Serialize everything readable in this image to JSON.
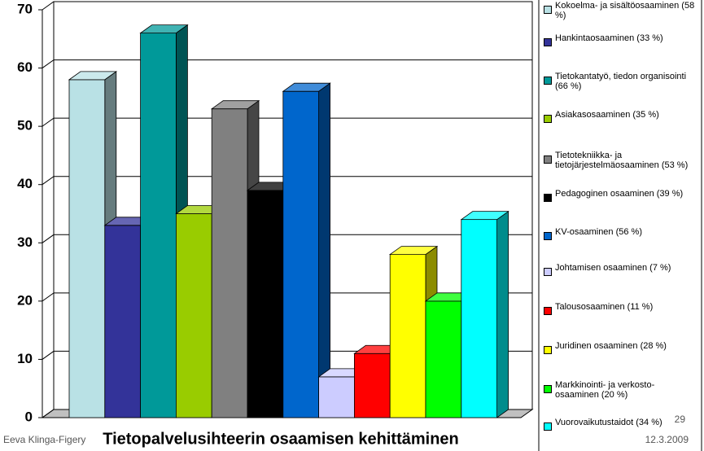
{
  "chart_data": {
    "type": "bar3d",
    "title": "Tietopalvelusihteerin osaamisen kehittäminen",
    "ylim": [
      0,
      70
    ],
    "yticks": [
      0,
      10,
      20,
      30,
      40,
      50,
      60,
      70
    ],
    "grid": true,
    "series": [
      {
        "name": "Kokoelma- ja sisältöosaaminen (58 %)",
        "color": "#b9e1e5",
        "values": [
          58
        ]
      },
      {
        "name": "Hankintaosaaminen (33 %)",
        "color": "#333399",
        "values": [
          33
        ]
      },
      {
        "name": "Tietokantatyö, tiedon organisointi (66 %)",
        "color": "#009999",
        "values": [
          66
        ]
      },
      {
        "name": "Asiakasosaaminen (35 %)",
        "color": "#99cc00",
        "values": [
          35
        ]
      },
      {
        "name": "Tietotekniikka- ja tietojärjestelmäosaaminen (53 %)",
        "color": "#808080",
        "values": [
          53
        ]
      },
      {
        "name": "Pedagoginen osaaminen (39 %)",
        "color": "#000000",
        "values": [
          39
        ]
      },
      {
        "name": "KV-osaaminen (56 %)",
        "color": "#0066cc",
        "values": [
          56
        ]
      },
      {
        "name": "Johtamisen osaaminen (7 %)",
        "color": "#ccccff",
        "values": [
          7
        ]
      },
      {
        "name": "Talousosaaminen (11 %)",
        "color": "#ff0000",
        "values": [
          11
        ]
      },
      {
        "name": "Juridinen osaaminen (28 %)",
        "color": "#ffff00",
        "values": [
          28
        ]
      },
      {
        "name": "Markkinointi- ja verkosto-osaaminen (20 %)",
        "color": "#00ff00",
        "values": [
          20
        ]
      },
      {
        "name": "Vuorovaikutustaidot (34 %)",
        "color": "#00ffff",
        "values": [
          34
        ]
      }
    ]
  },
  "footer": {
    "author": "Eeva Klinga-Figery",
    "page": "29",
    "date": "12.3.2009"
  }
}
